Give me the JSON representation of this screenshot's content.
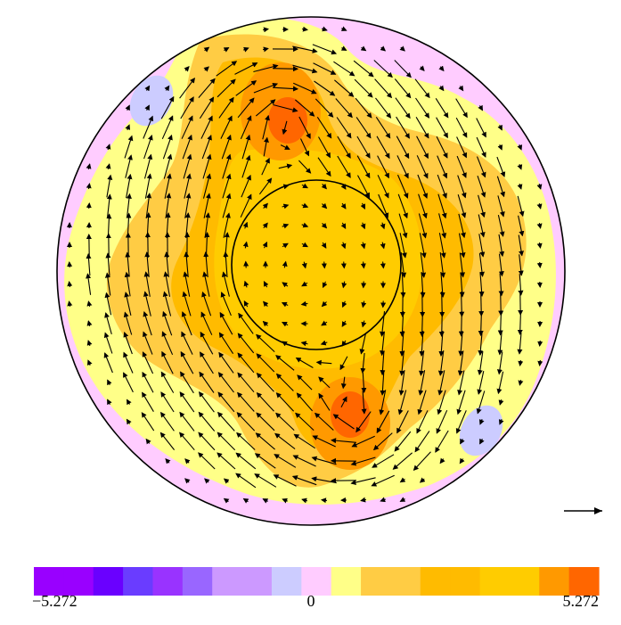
{
  "colorbar": {
    "min_label": "−5.272",
    "zero_label": "0",
    "max_label": "5.272",
    "colors": [
      "#9900ff",
      "#9900ff",
      "#6a00ff",
      "#6a3cff",
      "#9933ff",
      "#9966ff",
      "#cc99ff",
      "#cc99ff",
      "#ccccff",
      "#ffccff",
      "#ffff88",
      "#ffcc44",
      "#ffcc44",
      "#ffbb00",
      "#ffbb00",
      "#ffcc00",
      "#ffcc00",
      "#ff9900",
      "#ff6600"
    ]
  },
  "palette": {
    "outer_ring": "#ffccff",
    "light_yellow": "#ffff88",
    "light_orange": "#ffcc44",
    "yellow_orange": "#ffbb00",
    "orange": "#ff9900",
    "dark_orange": "#ff6600",
    "light_blue": "#ccccff"
  },
  "reference_vector": {
    "icon": "arrow-right-icon"
  }
}
